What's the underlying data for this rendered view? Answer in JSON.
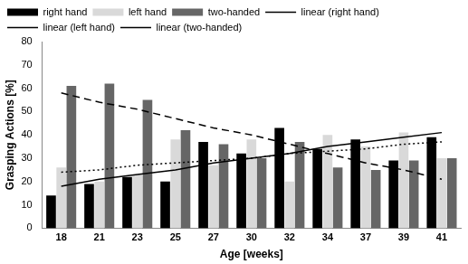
{
  "chart_data": {
    "type": "bar",
    "x_label": "Age [weeks]",
    "y_label": "Grasping Actions [%]",
    "categories": [
      "18",
      "21",
      "23",
      "25",
      "27",
      "30",
      "32",
      "34",
      "37",
      "39",
      "41"
    ],
    "series": [
      {
        "name": "right hand",
        "type": "bar",
        "color": "#000000",
        "values": [
          14,
          19,
          22,
          20,
          37,
          32,
          43,
          34,
          38,
          29,
          39
        ]
      },
      {
        "name": "left hand",
        "type": "bar",
        "color": "#d9d9d9",
        "values": [
          26,
          20,
          23,
          38,
          27,
          38,
          20,
          40,
          35,
          41,
          30
        ]
      },
      {
        "name": "two-handed",
        "type": "bar",
        "color": "#666666",
        "values": [
          61,
          62,
          55,
          42,
          36,
          30,
          37,
          26,
          25,
          29,
          30
        ]
      },
      {
        "name": "linear (right hand)",
        "type": "line",
        "line_style": "solid",
        "color": "#000000",
        "values": [
          18,
          21,
          23,
          25,
          28,
          30,
          32,
          35,
          37,
          39,
          41
        ]
      },
      {
        "name": "linear (left hand)",
        "type": "line",
        "line_style": "dotted",
        "color": "#000000",
        "values": [
          24,
          25,
          27,
          28,
          29,
          30,
          32,
          33,
          34,
          36,
          37
        ]
      },
      {
        "name": "linear (two-handed)",
        "type": "line",
        "line_style": "dashed",
        "color": "#000000",
        "values": [
          58,
          54,
          51,
          47,
          43,
          40,
          36,
          32,
          28,
          25,
          21
        ]
      }
    ],
    "ylim": [
      0,
      80
    ],
    "yticks": [
      0,
      10,
      20,
      30,
      40,
      50,
      60,
      70,
      80
    ],
    "grid": false,
    "legend": "top"
  }
}
